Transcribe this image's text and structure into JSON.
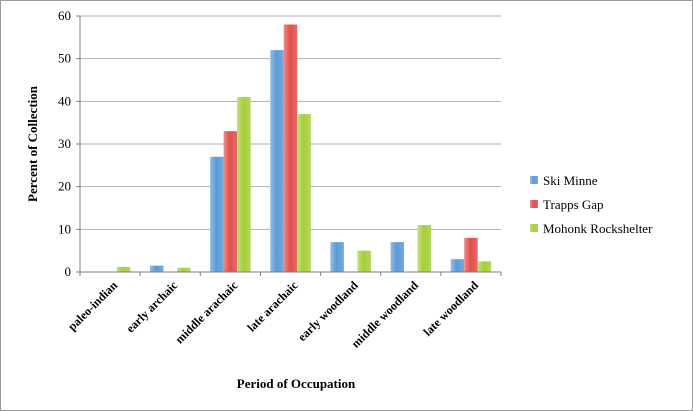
{
  "chart_data": {
    "type": "bar",
    "title": "",
    "xlabel": "Period of Occupation",
    "ylabel": "Percent of Collection",
    "ylim": [
      0,
      60
    ],
    "yticks": [
      0,
      10,
      20,
      30,
      40,
      50,
      60
    ],
    "grid": true,
    "legend": "right",
    "categories": [
      "paleo-indian",
      "early archaic",
      "middle arachaic",
      "late arachaic",
      "early woodland",
      "middle woodland",
      "late woodland"
    ],
    "series": [
      {
        "name": "Ski Minne",
        "color": "#5b9bd5",
        "values": [
          0,
          1.5,
          27,
          52,
          7,
          7,
          3
        ]
      },
      {
        "name": "Trapps Gap",
        "color": "#e0504b",
        "values": [
          0,
          0,
          33,
          58,
          0,
          0,
          8
        ]
      },
      {
        "name": "Mohonk Rockshelter",
        "color": "#a6cf38",
        "values": [
          1.2,
          1,
          41,
          37,
          5,
          11,
          2.5
        ]
      }
    ]
  }
}
